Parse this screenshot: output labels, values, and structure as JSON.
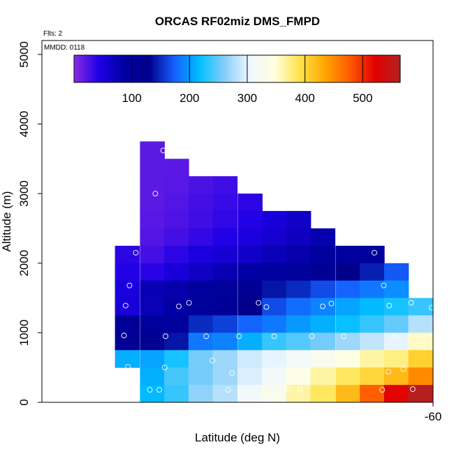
{
  "chart_data": {
    "type": "heatmap",
    "title": "ORCAS RF02miz DMS_FMPD",
    "xlabel": "Latitude (deg N)",
    "ylabel": "Altitude (m)",
    "annotations": {
      "flights": "Flts: 2",
      "date": "MMDD: 0118"
    },
    "x_ticks": [
      {
        "value": -60,
        "label": "-60"
      }
    ],
    "y_ticks": [
      {
        "value": 0,
        "label": "0"
      },
      {
        "value": 1000,
        "label": "1000"
      },
      {
        "value": 2000,
        "label": "2000"
      },
      {
        "value": 3000,
        "label": "3000"
      },
      {
        "value": 4000,
        "label": "4000"
      },
      {
        "value": 5000,
        "label": "5000"
      }
    ],
    "xlim": [
      -60.5,
      -60.0
    ],
    "ylim": [
      0,
      5200
    ],
    "colorbar": {
      "range": [
        0,
        565
      ],
      "ticks": [
        100,
        200,
        300,
        400,
        500
      ],
      "stops": [
        "#8a2be2",
        "#1e00e6",
        "#0000a0",
        "#00008b",
        "#1560ff",
        "#00bfff",
        "#87cefa",
        "#f0f8ff",
        "#ffffe0",
        "#ffe44a",
        "#ffa500",
        "#ff5a00",
        "#e00000",
        "#b22222"
      ]
    },
    "bin_size": {
      "lat": 0.03125,
      "alt_m": 250
    },
    "cells": [
      {
        "lat": -60.359,
        "alt": 3625,
        "v": 18
      },
      {
        "lat": -60.359,
        "alt": 3375,
        "v": 18
      },
      {
        "lat": -60.359,
        "alt": 3125,
        "v": 18
      },
      {
        "lat": -60.359,
        "alt": 2875,
        "v": 18
      },
      {
        "lat": -60.359,
        "alt": 2625,
        "v": 20
      },
      {
        "lat": -60.359,
        "alt": 2375,
        "v": 22
      },
      {
        "lat": -60.359,
        "alt": 2125,
        "v": 28
      },
      {
        "lat": -60.359,
        "alt": 1875,
        "v": 40
      },
      {
        "lat": -60.359,
        "alt": 1625,
        "v": 75
      },
      {
        "lat": -60.359,
        "alt": 1375,
        "v": 72
      },
      {
        "lat": -60.359,
        "alt": 1125,
        "v": 95
      },
      {
        "lat": -60.359,
        "alt": 875,
        "v": 118
      },
      {
        "lat": -60.359,
        "alt": 625,
        "v": 205
      },
      {
        "lat": -60.359,
        "alt": 375,
        "v": 210
      },
      {
        "lat": -60.359,
        "alt": 125,
        "v": 215
      },
      {
        "lat": -60.328,
        "alt": 3375,
        "v": 19
      },
      {
        "lat": -60.328,
        "alt": 3125,
        "v": 20
      },
      {
        "lat": -60.328,
        "alt": 2875,
        "v": 22
      },
      {
        "lat": -60.328,
        "alt": 2625,
        "v": 24
      },
      {
        "lat": -60.328,
        "alt": 2375,
        "v": 28
      },
      {
        "lat": -60.328,
        "alt": 2125,
        "v": 38
      },
      {
        "lat": -60.328,
        "alt": 1875,
        "v": 50
      },
      {
        "lat": -60.328,
        "alt": 1625,
        "v": 80
      },
      {
        "lat": -60.328,
        "alt": 1375,
        "v": 85
      },
      {
        "lat": -60.328,
        "alt": 1125,
        "v": 95
      },
      {
        "lat": -60.328,
        "alt": 875,
        "v": 140
      },
      {
        "lat": -60.328,
        "alt": 625,
        "v": 225
      },
      {
        "lat": -60.328,
        "alt": 375,
        "v": 240
      },
      {
        "lat": -60.328,
        "alt": 125,
        "v": 235
      },
      {
        "lat": -60.297,
        "alt": 3125,
        "v": 25
      },
      {
        "lat": -60.297,
        "alt": 2875,
        "v": 28
      },
      {
        "lat": -60.297,
        "alt": 2625,
        "v": 30
      },
      {
        "lat": -60.297,
        "alt": 2375,
        "v": 35
      },
      {
        "lat": -60.297,
        "alt": 2125,
        "v": 48
      },
      {
        "lat": -60.297,
        "alt": 1875,
        "v": 65
      },
      {
        "lat": -60.297,
        "alt": 1625,
        "v": 92
      },
      {
        "lat": -60.297,
        "alt": 1375,
        "v": 98
      },
      {
        "lat": -60.297,
        "alt": 1125,
        "v": 150
      },
      {
        "lat": -60.297,
        "alt": 875,
        "v": 185
      },
      {
        "lat": -60.297,
        "alt": 625,
        "v": 255
      },
      {
        "lat": -60.297,
        "alt": 375,
        "v": 255
      },
      {
        "lat": -60.297,
        "alt": 125,
        "v": 265
      },
      {
        "lat": -60.266,
        "alt": 3125,
        "v": 30
      },
      {
        "lat": -60.266,
        "alt": 2875,
        "v": 33
      },
      {
        "lat": -60.266,
        "alt": 2625,
        "v": 36
      },
      {
        "lat": -60.266,
        "alt": 2375,
        "v": 42
      },
      {
        "lat": -60.266,
        "alt": 2125,
        "v": 55
      },
      {
        "lat": -60.266,
        "alt": 1875,
        "v": 75
      },
      {
        "lat": -60.266,
        "alt": 1625,
        "v": 100
      },
      {
        "lat": -60.266,
        "alt": 1375,
        "v": 105
      },
      {
        "lat": -60.266,
        "alt": 1125,
        "v": 160
      },
      {
        "lat": -60.266,
        "alt": 875,
        "v": 190
      },
      {
        "lat": -60.266,
        "alt": 625,
        "v": 270
      },
      {
        "lat": -60.266,
        "alt": 375,
        "v": 270
      },
      {
        "lat": -60.266,
        "alt": 125,
        "v": 280
      },
      {
        "lat": -60.234,
        "alt": 2875,
        "v": 38
      },
      {
        "lat": -60.234,
        "alt": 2625,
        "v": 42
      },
      {
        "lat": -60.234,
        "alt": 2375,
        "v": 48
      },
      {
        "lat": -60.234,
        "alt": 2125,
        "v": 62
      },
      {
        "lat": -60.234,
        "alt": 1875,
        "v": 85
      },
      {
        "lat": -60.234,
        "alt": 1625,
        "v": 115
      },
      {
        "lat": -60.234,
        "alt": 1375,
        "v": 130
      },
      {
        "lat": -60.234,
        "alt": 1125,
        "v": 175
      },
      {
        "lat": -60.234,
        "alt": 875,
        "v": 210
      },
      {
        "lat": -60.234,
        "alt": 625,
        "v": 290
      },
      {
        "lat": -60.234,
        "alt": 375,
        "v": 295
      },
      {
        "lat": -60.234,
        "alt": 125,
        "v": 310
      },
      {
        "lat": -60.203,
        "alt": 2625,
        "v": 50
      },
      {
        "lat": -60.203,
        "alt": 2375,
        "v": 58
      },
      {
        "lat": -60.203,
        "alt": 2125,
        "v": 72
      },
      {
        "lat": -60.203,
        "alt": 1875,
        "v": 92
      },
      {
        "lat": -60.203,
        "alt": 1625,
        "v": 140
      },
      {
        "lat": -60.203,
        "alt": 1375,
        "v": 165
      },
      {
        "lat": -60.203,
        "alt": 1125,
        "v": 185
      },
      {
        "lat": -60.203,
        "alt": 875,
        "v": 235
      },
      {
        "lat": -60.203,
        "alt": 625,
        "v": 300
      },
      {
        "lat": -60.203,
        "alt": 375,
        "v": 310
      },
      {
        "lat": -60.203,
        "alt": 125,
        "v": 330
      },
      {
        "lat": -60.172,
        "alt": 2625,
        "v": 62
      },
      {
        "lat": -60.172,
        "alt": 2375,
        "v": 68
      },
      {
        "lat": -60.172,
        "alt": 2125,
        "v": 80
      },
      {
        "lat": -60.172,
        "alt": 1875,
        "v": 98
      },
      {
        "lat": -60.172,
        "alt": 1625,
        "v": 150
      },
      {
        "lat": -60.172,
        "alt": 1375,
        "v": 180
      },
      {
        "lat": -60.172,
        "alt": 1125,
        "v": 200
      },
      {
        "lat": -60.172,
        "alt": 875,
        "v": 245
      },
      {
        "lat": -60.172,
        "alt": 625,
        "v": 315
      },
      {
        "lat": -60.172,
        "alt": 375,
        "v": 340
      },
      {
        "lat": -60.172,
        "alt": 125,
        "v": 365
      },
      {
        "lat": -60.141,
        "alt": 2375,
        "v": 78
      },
      {
        "lat": -60.141,
        "alt": 2125,
        "v": 88
      },
      {
        "lat": -60.141,
        "alt": 1875,
        "v": 112
      },
      {
        "lat": -60.141,
        "alt": 1625,
        "v": 165
      },
      {
        "lat": -60.141,
        "alt": 1375,
        "v": 190
      },
      {
        "lat": -60.141,
        "alt": 1125,
        "v": 210
      },
      {
        "lat": -60.141,
        "alt": 875,
        "v": 255
      },
      {
        "lat": -60.141,
        "alt": 625,
        "v": 330
      },
      {
        "lat": -60.141,
        "alt": 375,
        "v": 365
      },
      {
        "lat": -60.141,
        "alt": 125,
        "v": 385
      },
      {
        "lat": -60.109,
        "alt": 2125,
        "v": 92
      },
      {
        "lat": -60.109,
        "alt": 1875,
        "v": 130
      },
      {
        "lat": -60.109,
        "alt": 1625,
        "v": 175
      },
      {
        "lat": -60.109,
        "alt": 1375,
        "v": 205
      },
      {
        "lat": -60.109,
        "alt": 1125,
        "v": 220
      },
      {
        "lat": -60.109,
        "alt": 875,
        "v": 270
      },
      {
        "lat": -60.109,
        "alt": 625,
        "v": 345
      },
      {
        "lat": -60.109,
        "alt": 375,
        "v": 385
      },
      {
        "lat": -60.109,
        "alt": 125,
        "v": 420
      },
      {
        "lat": -60.078,
        "alt": 2125,
        "v": 95
      },
      {
        "lat": -60.078,
        "alt": 1875,
        "v": 145
      },
      {
        "lat": -60.078,
        "alt": 1625,
        "v": 185
      },
      {
        "lat": -60.078,
        "alt": 1375,
        "v": 215
      },
      {
        "lat": -60.078,
        "alt": 1125,
        "v": 235
      },
      {
        "lat": -60.078,
        "alt": 875,
        "v": 285
      },
      {
        "lat": -60.078,
        "alt": 625,
        "v": 365
      },
      {
        "lat": -60.078,
        "alt": 375,
        "v": 400
      },
      {
        "lat": -60.078,
        "alt": 125,
        "v": 475
      },
      {
        "lat": -60.047,
        "alt": 1875,
        "v": 170
      },
      {
        "lat": -60.047,
        "alt": 1625,
        "v": 195
      },
      {
        "lat": -60.047,
        "alt": 1375,
        "v": 225
      },
      {
        "lat": -60.047,
        "alt": 1125,
        "v": 250
      },
      {
        "lat": -60.047,
        "alt": 875,
        "v": 300
      },
      {
        "lat": -60.047,
        "alt": 625,
        "v": 375
      },
      {
        "lat": -60.047,
        "alt": 375,
        "v": 420
      },
      {
        "lat": -60.047,
        "alt": 125,
        "v": 520
      },
      {
        "lat": -60.016,
        "alt": 1375,
        "v": 235
      },
      {
        "lat": -60.016,
        "alt": 1125,
        "v": 280
      },
      {
        "lat": -60.016,
        "alt": 875,
        "v": 355
      },
      {
        "lat": -60.016,
        "alt": 625,
        "v": 405
      },
      {
        "lat": -60.016,
        "alt": 375,
        "v": 450
      },
      {
        "lat": -60.016,
        "alt": 125,
        "v": 560
      },
      {
        "lat": -60.391,
        "alt": 2125,
        "v": 38
      },
      {
        "lat": -60.391,
        "alt": 1875,
        "v": 42
      },
      {
        "lat": -60.391,
        "alt": 1625,
        "v": 48
      },
      {
        "lat": -60.391,
        "alt": 1375,
        "v": 50
      },
      {
        "lat": -60.391,
        "alt": 1125,
        "v": 105
      },
      {
        "lat": -60.391,
        "alt": 875,
        "v": 110
      },
      {
        "lat": -60.391,
        "alt": 625,
        "v": 210
      }
    ],
    "points": [
      {
        "lat": -60.345,
        "alt": 3620
      },
      {
        "lat": -60.355,
        "alt": 3000
      },
      {
        "lat": -60.38,
        "alt": 2150
      },
      {
        "lat": -60.388,
        "alt": 1680
      },
      {
        "lat": -60.393,
        "alt": 1390
      },
      {
        "lat": -60.395,
        "alt": 960
      },
      {
        "lat": -60.39,
        "alt": 510
      },
      {
        "lat": -60.362,
        "alt": 180
      },
      {
        "lat": -60.35,
        "alt": 180
      },
      {
        "lat": -60.343,
        "alt": 500
      },
      {
        "lat": -60.342,
        "alt": 950
      },
      {
        "lat": -60.325,
        "alt": 1380
      },
      {
        "lat": -60.312,
        "alt": 1430
      },
      {
        "lat": -60.29,
        "alt": 950
      },
      {
        "lat": -60.282,
        "alt": 600
      },
      {
        "lat": -60.262,
        "alt": 180
      },
      {
        "lat": -60.257,
        "alt": 420
      },
      {
        "lat": -60.248,
        "alt": 950
      },
      {
        "lat": -60.223,
        "alt": 1430
      },
      {
        "lat": -60.213,
        "alt": 1370
      },
      {
        "lat": -60.203,
        "alt": 950
      },
      {
        "lat": -60.194,
        "alt": 500
      },
      {
        "lat": -60.184,
        "alt": 180
      },
      {
        "lat": -60.17,
        "alt": 180
      },
      {
        "lat": -60.162,
        "alt": 490
      },
      {
        "lat": -60.155,
        "alt": 950
      },
      {
        "lat": -60.141,
        "alt": 1380
      },
      {
        "lat": -60.13,
        "alt": 1420
      },
      {
        "lat": -60.114,
        "alt": 950
      },
      {
        "lat": -60.075,
        "alt": 2150
      },
      {
        "lat": -60.063,
        "alt": 1680
      },
      {
        "lat": -60.056,
        "alt": 1390
      },
      {
        "lat": -60.049,
        "alt": 950
      },
      {
        "lat": -60.057,
        "alt": 440
      },
      {
        "lat": -60.065,
        "alt": 180
      },
      {
        "lat": -60.038,
        "alt": 480
      },
      {
        "lat": -60.028,
        "alt": 1430
      },
      {
        "lat": -60.026,
        "alt": 190
      },
      {
        "lat": -60.002,
        "alt": 1360
      }
    ]
  }
}
